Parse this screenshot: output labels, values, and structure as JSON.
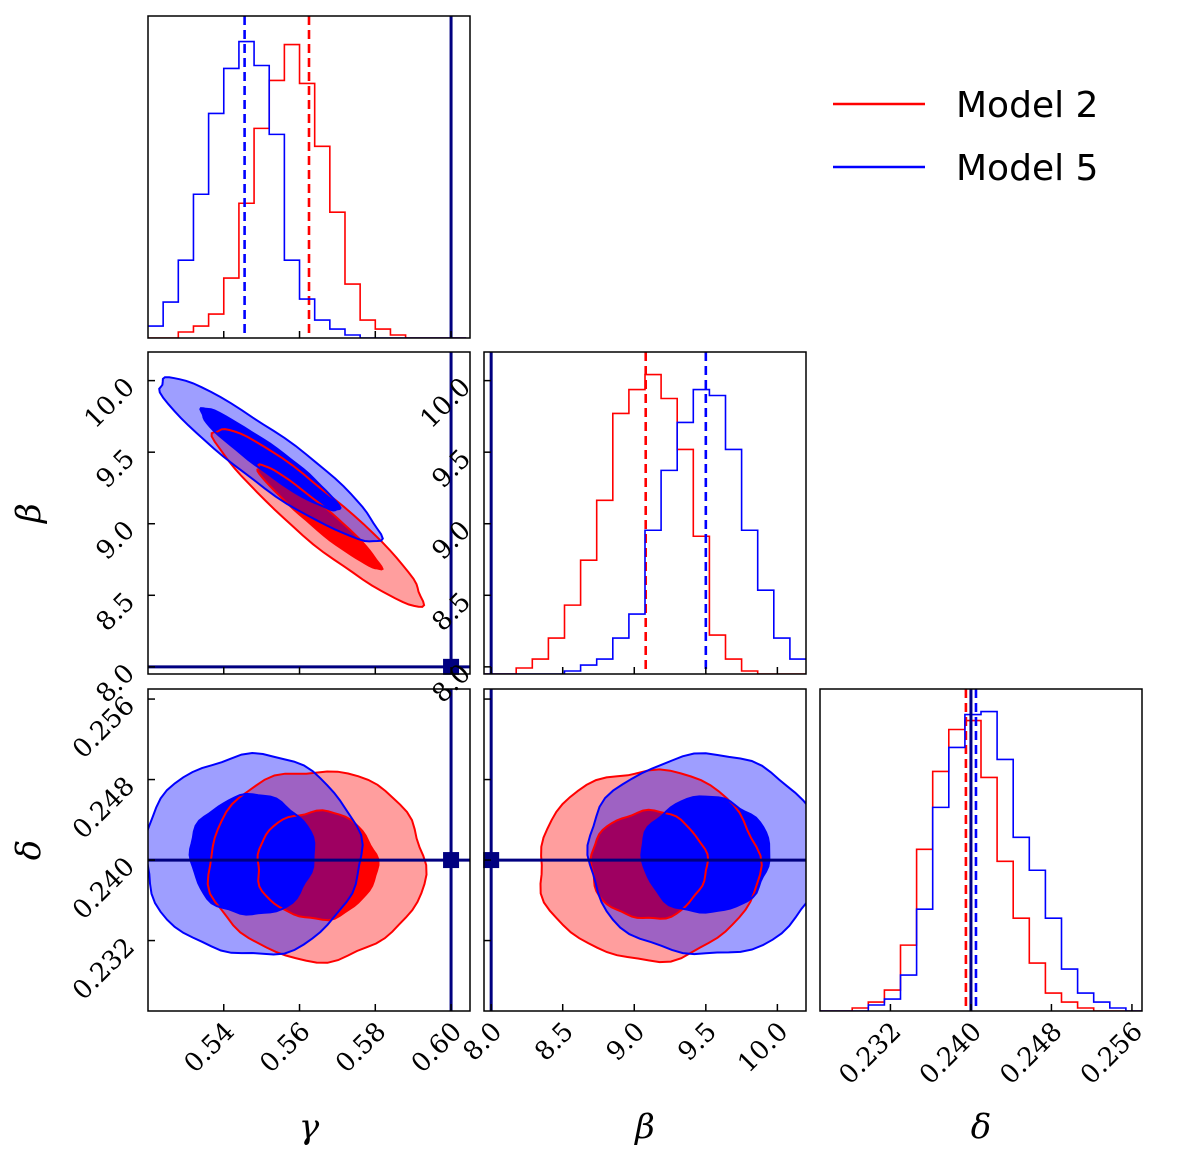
{
  "chart_data": {
    "type": "corner",
    "parameters": [
      {
        "name": "gamma",
        "symbol": "γ",
        "range": [
          0.52,
          0.605
        ],
        "ticks": [
          "0.54",
          "0.56",
          "0.58",
          "0.60"
        ],
        "truth": 0.6
      },
      {
        "name": "beta",
        "symbol": "β",
        "range": [
          7.95,
          10.2
        ],
        "ticks": [
          "8.0",
          "8.5",
          "9.0",
          "9.5",
          "10.0"
        ],
        "truth": 8.0
      },
      {
        "name": "delta",
        "symbol": "δ",
        "range": [
          0.225,
          0.257
        ],
        "ticks": [
          "0.232",
          "0.240",
          "0.248",
          "0.256"
        ],
        "truth": 0.24
      }
    ],
    "colors": {
      "model2": "#ff0000",
      "model5": "#0000ff",
      "truth": "#000080"
    },
    "series": [
      {
        "name": "Model 2",
        "color": "#ff0000",
        "medians": {
          "gamma": 0.5625,
          "beta": 9.08,
          "delta": 0.2395
        },
        "hist": {
          "gamma": {
            "bin_start": 0.52,
            "bin_width": 0.004,
            "counts": [
              0,
              0,
              0.02,
              0.04,
              0.08,
              0.2,
              0.45,
              0.7,
              0.86,
              0.98,
              0.85,
              0.64,
              0.42,
              0.18,
              0.06,
              0.03,
              0.01,
              0,
              0,
              0,
              0
            ]
          },
          "beta": {
            "bin_start": 7.95,
            "bin_width": 0.1125,
            "counts": [
              0,
              0,
              0.02,
              0.05,
              0.12,
              0.23,
              0.38,
              0.58,
              0.87,
              0.95,
              1.0,
              0.92,
              0.75,
              0.46,
              0.13,
              0.05,
              0.01,
              0,
              0,
              0
            ]
          },
          "delta": {
            "bin_start": 0.225,
            "bin_width": 0.0016,
            "counts": [
              0,
              0,
              0.01,
              0.03,
              0.07,
              0.22,
              0.54,
              0.8,
              0.94,
              0.97,
              0.78,
              0.5,
              0.31,
              0.16,
              0.06,
              0.03,
              0.01,
              0,
              0,
              0
            ]
          }
        }
      },
      {
        "name": "Model 5",
        "color": "#0000ff",
        "medians": {
          "gamma": 0.5455,
          "beta": 9.5,
          "delta": 0.2405
        },
        "hist": {
          "gamma": {
            "bin_start": 0.52,
            "bin_width": 0.004,
            "counts": [
              0.04,
              0.12,
              0.26,
              0.48,
              0.75,
              0.9,
              0.99,
              0.91,
              0.68,
              0.26,
              0.13,
              0.06,
              0.03,
              0.01,
              0,
              0,
              0,
              0,
              0,
              0,
              0
            ]
          },
          "beta": {
            "bin_start": 7.95,
            "bin_width": 0.1125,
            "counts": [
              0,
              0,
              0,
              0,
              0,
              0.01,
              0.03,
              0.05,
              0.12,
              0.2,
              0.48,
              0.68,
              0.84,
              0.95,
              0.93,
              0.75,
              0.48,
              0.28,
              0.12,
              0.05
            ]
          },
          "delta": {
            "bin_start": 0.225,
            "bin_width": 0.0016,
            "counts": [
              0,
              0,
              0,
              0.02,
              0.04,
              0.12,
              0.34,
              0.68,
              0.88,
              0.99,
              1.0,
              0.84,
              0.58,
              0.47,
              0.31,
              0.14,
              0.06,
              0.03,
              0.01,
              0
            ]
          }
        }
      }
    ],
    "grid": false,
    "legend_position": "top-right"
  },
  "legend": {
    "items": [
      "Model 2",
      "Model 5"
    ]
  }
}
